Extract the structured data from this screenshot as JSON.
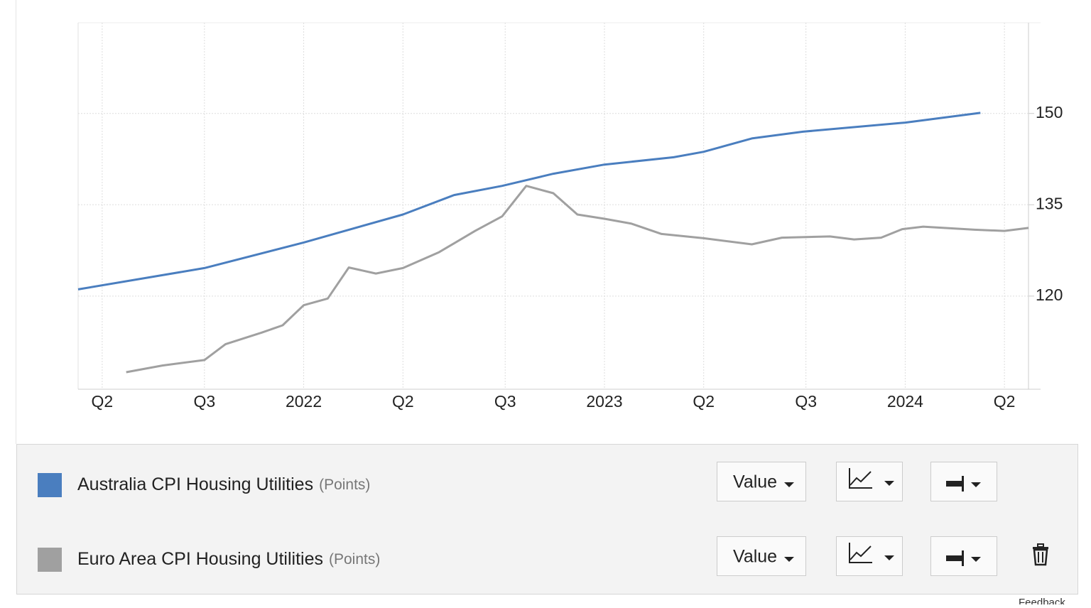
{
  "chart_data": {
    "type": "line",
    "xlim": [
      2021.25,
      2024.41
    ],
    "ylim": [
      104.7,
      164.9
    ],
    "xticks": [
      {
        "value": 2021.33,
        "label": "Q2"
      },
      {
        "value": 2021.67,
        "label": "Q3"
      },
      {
        "value": 2022,
        "label": "2022"
      },
      {
        "value": 2022.33,
        "label": "Q2"
      },
      {
        "value": 2022.67,
        "label": "Q3"
      },
      {
        "value": 2023,
        "label": "2023"
      },
      {
        "value": 2023.33,
        "label": "Q2"
      },
      {
        "value": 2023.67,
        "label": "Q3"
      },
      {
        "value": 2024,
        "label": "2024"
      },
      {
        "value": 2024.33,
        "label": "Q2"
      }
    ],
    "yticks": [
      120,
      135,
      150
    ],
    "grid": true,
    "y_axis_side": "right",
    "series": [
      {
        "name": "Australia CPI Housing Utilities",
        "unit": "(Points)",
        "mode": "Value",
        "color": "#4a7ebf",
        "x": [
          2021.25,
          2021.67,
          2022.0,
          2022.33,
          2022.5,
          2022.66,
          2022.83,
          2023.0,
          2023.23,
          2023.33,
          2023.49,
          2023.66,
          2024.0,
          2024.25
        ],
        "values": [
          121.1,
          124.6,
          128.8,
          133.4,
          136.6,
          138.1,
          140.1,
          141.6,
          142.8,
          143.7,
          145.9,
          147.0,
          148.5,
          150.1
        ]
      },
      {
        "name": "Euro Area CPI Housing Utilities",
        "unit": "(Points)",
        "mode": "Value",
        "color": "#a0a0a0",
        "x": [
          2021.41,
          2021.53,
          2021.67,
          2021.74,
          2021.86,
          2021.93,
          2022.0,
          2022.08,
          2022.15,
          2022.24,
          2022.33,
          2022.45,
          2022.57,
          2022.66,
          2022.74,
          2022.83,
          2022.91,
          2023.0,
          2023.09,
          2023.19,
          2023.33,
          2023.49,
          2023.59,
          2023.75,
          2023.83,
          2023.92,
          2023.99,
          2024.06,
          2024.23,
          2024.33,
          2024.41
        ],
        "values": [
          107.5,
          108.6,
          109.5,
          112.1,
          114.0,
          115.2,
          118.5,
          119.6,
          124.7,
          123.7,
          124.6,
          127.2,
          130.7,
          133.1,
          138.1,
          136.9,
          133.4,
          132.7,
          131.9,
          130.2,
          129.5,
          128.5,
          129.6,
          129.8,
          129.3,
          129.6,
          131.0,
          131.4,
          130.9,
          130.7,
          131.2
        ]
      }
    ]
  },
  "footer": {
    "feedback": "Feedback"
  }
}
